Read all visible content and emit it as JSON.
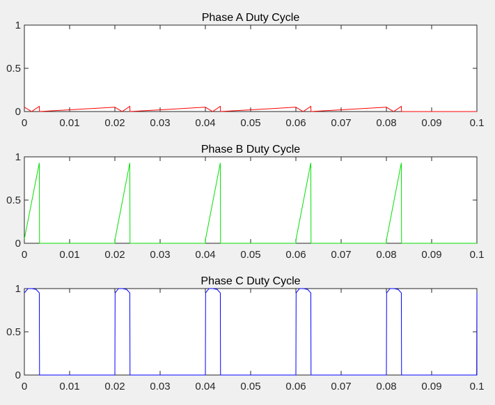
{
  "figure": {
    "background": "#f0f0f0"
  },
  "chart_data": [
    {
      "type": "line",
      "title": "Phase A Duty Cycle",
      "xlabel": "",
      "ylabel": "",
      "xlim": [
        0,
        0.1
      ],
      "ylim": [
        0,
        1
      ],
      "xticks": [
        0,
        0.01,
        0.02,
        0.03,
        0.04,
        0.05,
        0.06,
        0.07,
        0.08,
        0.09,
        0.1
      ],
      "xtick_labels": [
        "0",
        "0.01",
        "0.02",
        "0.03",
        "0.04",
        "0.05",
        "0.06",
        "0.07",
        "0.08",
        "0.09",
        "0.1"
      ],
      "yticks": [
        0,
        0.5,
        1
      ],
      "ytick_labels": [
        "0",
        "0.5",
        "1"
      ],
      "grid": false,
      "series": [
        {
          "color": "#ff0000",
          "x": [
            0,
            0.0016,
            0.0033,
            0.00335,
            0.02,
            0.0216,
            0.0233,
            0.02335,
            0.04,
            0.0416,
            0.0433,
            0.04335,
            0.06,
            0.0616,
            0.0633,
            0.06335,
            0.08,
            0.0816,
            0.0833,
            0.08335,
            0.1
          ],
          "y": [
            0.05,
            0,
            0.06,
            0,
            0.05,
            0,
            0.06,
            0,
            0.05,
            0,
            0.06,
            0,
            0.05,
            0,
            0.06,
            0,
            0.05,
            0,
            0.06,
            0,
            0
          ]
        }
      ]
    },
    {
      "type": "line",
      "title": "Phase B Duty Cycle",
      "xlabel": "",
      "ylabel": "",
      "xlim": [
        0,
        0.1
      ],
      "ylim": [
        0,
        1
      ],
      "xticks": [
        0,
        0.01,
        0.02,
        0.03,
        0.04,
        0.05,
        0.06,
        0.07,
        0.08,
        0.09,
        0.1
      ],
      "xtick_labels": [
        "0",
        "0.01",
        "0.02",
        "0.03",
        "0.04",
        "0.05",
        "0.06",
        "0.07",
        "0.08",
        "0.09",
        "0.1"
      ],
      "yticks": [
        0,
        0.5,
        1
      ],
      "ytick_labels": [
        "0",
        "0.5",
        "1"
      ],
      "grid": false,
      "series": [
        {
          "color": "#00e000",
          "x": [
            0,
            0.0033,
            0.00335,
            0.02,
            0.02005,
            0.0233,
            0.02335,
            0.04,
            0.04005,
            0.0433,
            0.04335,
            0.06,
            0.06005,
            0.0633,
            0.06335,
            0.08,
            0.08005,
            0.0833,
            0.08335,
            0.1
          ],
          "y": [
            0.05,
            0.93,
            0,
            0,
            0.05,
            0.93,
            0,
            0,
            0.05,
            0.93,
            0,
            0,
            0.05,
            0.93,
            0,
            0,
            0.05,
            0.93,
            0,
            0
          ]
        }
      ]
    },
    {
      "type": "line",
      "title": "Phase C Duty Cycle",
      "xlabel": "",
      "ylabel": "",
      "xlim": [
        0,
        0.1
      ],
      "ylim": [
        0,
        1
      ],
      "xticks": [
        0,
        0.01,
        0.02,
        0.03,
        0.04,
        0.05,
        0.06,
        0.07,
        0.08,
        0.09,
        0.1
      ],
      "xtick_labels": [
        "0",
        "0.01",
        "0.02",
        "0.03",
        "0.04",
        "0.05",
        "0.06",
        "0.07",
        "0.08",
        "0.09",
        "0.1"
      ],
      "yticks": [
        0,
        0.5,
        1
      ],
      "ytick_labels": [
        "0",
        "0.5",
        "1"
      ],
      "grid": false,
      "series": [
        {
          "color": "#0000ff",
          "x": [
            0,
            0.0008,
            0.0017,
            0.0026,
            0.0033,
            0.00335,
            0.02,
            0.02005,
            0.0208,
            0.0217,
            0.0226,
            0.0233,
            0.02335,
            0.04,
            0.04005,
            0.0408,
            0.0417,
            0.0426,
            0.0433,
            0.04335,
            0.06,
            0.06005,
            0.0608,
            0.0617,
            0.0626,
            0.0633,
            0.06335,
            0.08,
            0.08005,
            0.0808,
            0.0817,
            0.0826,
            0.0833,
            0.08335,
            0.09995,
            0.1
          ],
          "y": [
            0.95,
            1.0,
            1.0,
            0.99,
            0.95,
            0,
            0,
            0.95,
            1.0,
            1.0,
            0.99,
            0.95,
            0,
            0,
            0.95,
            1.0,
            1.0,
            0.99,
            0.95,
            0,
            0,
            0.95,
            1.0,
            1.0,
            0.99,
            0.95,
            0,
            0,
            0.95,
            1.0,
            1.0,
            0.99,
            0.95,
            0,
            0,
            0.95
          ]
        }
      ]
    }
  ]
}
